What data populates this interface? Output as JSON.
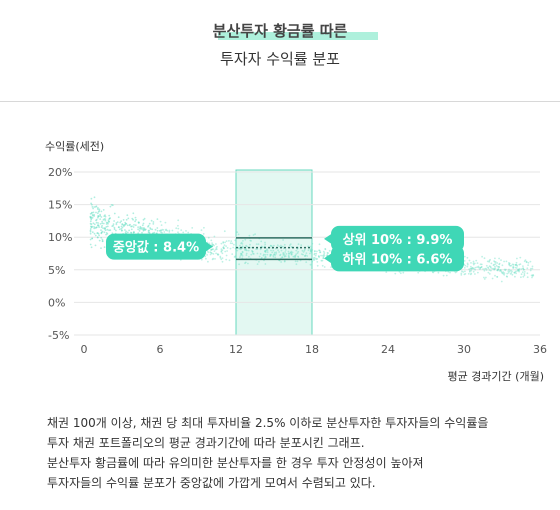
{
  "header": {
    "title_line1": "분산투자 황금률 따른",
    "title_line2": "투자자 수익률 분포"
  },
  "chart_data": {
    "type": "scatter",
    "ylabel": "수익률(세전)",
    "xlabel": "평균 경과기간 (개월)",
    "xlim": [
      0,
      36
    ],
    "ylim": [
      -5,
      20
    ],
    "x_ticks": [
      0,
      6,
      12,
      18,
      24,
      30,
      36
    ],
    "y_ticks": [
      20,
      15,
      10,
      5,
      0,
      -5
    ],
    "y_tick_labels": [
      "20%",
      "15%",
      "10%",
      "5%",
      "0%",
      "-5%"
    ],
    "highlight_range": [
      12,
      18
    ],
    "median": 8.4,
    "upper": 9.9,
    "lower": 6.6,
    "labels": {
      "median": "중앙값 : 8.4%",
      "upper": "상위 10% : 9.9%",
      "lower": "하위 10% : 6.6%"
    },
    "colors": {
      "points": "#6fe0c6",
      "highlight_fill": "#e3f8f2",
      "highlight_border": "#67d9bf",
      "label_bg": "#3fd7b6",
      "lines": "#2e6f63"
    }
  },
  "caption": {
    "lines": [
      "채권 100개 이상, 채권 당 최대 투자비율 2.5% 이하로 분산투자한 투자자들의 수익률을",
      "투자 채권 포트폴리오의 평균 경과기간에 따라 분포시킨 그래프.",
      "분산투자 황금률에 따라 유의미한 분산투자를 한 경우 투자 안정성이 높아져",
      "투자자들의 수익률 분포가 중앙값에 가깝게 모여서 수렴되고 있다."
    ]
  }
}
